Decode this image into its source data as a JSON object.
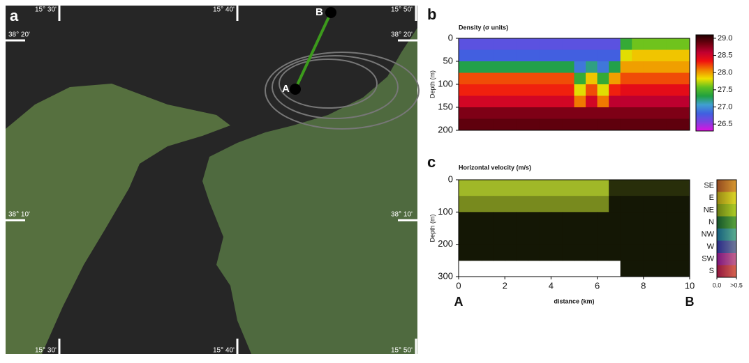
{
  "map": {
    "panel": "a",
    "lon_labels": [
      "15° 30'",
      "15° 40'",
      "15° 50'"
    ],
    "lat_labels": [
      "38° 20'",
      "38° 10'"
    ],
    "points": [
      "A",
      "B"
    ]
  },
  "chart_data": [
    {
      "type": "heatmap",
      "panel": "b",
      "title": "Density (σ units)",
      "y_label": "Depth (m)",
      "xlim": [
        0,
        10
      ],
      "ylim": [
        0,
        200
      ],
      "invert_y": true,
      "yticks": [
        0,
        50,
        100,
        150,
        200
      ],
      "x_edges": [
        0,
        0.5,
        1,
        1.5,
        2,
        2.5,
        3,
        3.5,
        4,
        4.5,
        5,
        5.5,
        6,
        6.5,
        7,
        7.5,
        8,
        8.5,
        9,
        9.5,
        10
      ],
      "y_edges": [
        0,
        25,
        50,
        75,
        100,
        125,
        150,
        175,
        200
      ],
      "values": [
        [
          26.7,
          26.7,
          26.7,
          26.7,
          26.7,
          26.7,
          26.7,
          26.7,
          26.7,
          26.7,
          26.7,
          26.7,
          26.7,
          26.7,
          27.4,
          27.6,
          27.6,
          27.6,
          27.6,
          27.6
        ],
        [
          26.8,
          26.8,
          26.8,
          26.8,
          26.8,
          26.8,
          26.8,
          26.8,
          26.8,
          26.8,
          26.8,
          26.8,
          26.8,
          26.8,
          27.8,
          27.9,
          27.9,
          27.9,
          27.9,
          27.9
        ],
        [
          27.3,
          27.3,
          27.3,
          27.3,
          27.3,
          27.3,
          27.3,
          27.3,
          27.3,
          27.3,
          26.9,
          27.2,
          26.9,
          27.3,
          28.0,
          28.0,
          28.0,
          28.0,
          28.0,
          28.0
        ],
        [
          28.2,
          28.2,
          28.2,
          28.2,
          28.2,
          28.2,
          28.2,
          28.2,
          28.2,
          28.2,
          27.4,
          27.9,
          27.4,
          28.0,
          28.2,
          28.2,
          28.2,
          28.2,
          28.2,
          28.2
        ],
        [
          28.3,
          28.3,
          28.3,
          28.3,
          28.3,
          28.3,
          28.3,
          28.3,
          28.3,
          28.3,
          27.8,
          28.2,
          27.8,
          28.3,
          28.4,
          28.4,
          28.4,
          28.4,
          28.4,
          28.4
        ],
        [
          28.5,
          28.5,
          28.5,
          28.5,
          28.5,
          28.5,
          28.5,
          28.5,
          28.5,
          28.5,
          28.1,
          28.5,
          28.1,
          28.6,
          28.6,
          28.6,
          28.6,
          28.6,
          28.6,
          28.6
        ],
        [
          28.8,
          28.8,
          28.8,
          28.8,
          28.8,
          28.8,
          28.8,
          28.8,
          28.8,
          28.8,
          28.8,
          28.8,
          28.8,
          28.8,
          28.8,
          28.8,
          28.8,
          28.8,
          28.8,
          28.8
        ],
        [
          28.9,
          28.9,
          28.9,
          28.9,
          28.9,
          28.9,
          28.9,
          28.9,
          28.9,
          28.9,
          28.9,
          28.9,
          28.9,
          28.9,
          28.9,
          28.9,
          28.9,
          28.9,
          28.9,
          28.9
        ]
      ],
      "zlim": [
        26.3,
        29.1
      ],
      "zticks": [
        26.5,
        {
          "value": 27,
          "label": "27.0"
        },
        27.5,
        {
          "value": 28,
          "label": "28.0"
        },
        28.5,
        {
          "value": 29,
          "label": "29.0"
        }
      ],
      "colorscale": [
        "#e010e0",
        "#8040e0",
        "#4060e0",
        "#40a0d0",
        "#20a040",
        "#60c020",
        "#f0e000",
        "#f08000",
        "#f01010",
        "#c00030",
        "#700010",
        "#200000"
      ]
    },
    {
      "type": "heatmap",
      "panel": "c",
      "title": "Horizontal velocity (m/s)",
      "y_label": "Depth (m)",
      "x_label": "distance (km)",
      "xlim": [
        0,
        10
      ],
      "ylim": [
        0,
        300
      ],
      "invert_y": true,
      "yticks": [
        0,
        100,
        200,
        300
      ],
      "xticks": [
        0,
        2,
        4,
        6,
        8,
        10
      ],
      "x_edges": [
        0,
        0.5,
        1,
        1.5,
        2,
        2.5,
        3,
        3.5,
        4,
        4.5,
        5,
        5.5,
        6,
        6.5,
        7,
        7.5,
        8,
        8.5,
        9,
        9.5,
        10
      ],
      "y_edges": [
        0,
        50,
        100,
        150,
        200,
        250,
        300
      ],
      "values": [
        [
          0.4,
          0.4,
          0.4,
          0.4,
          0.4,
          0.4,
          0.4,
          0.4,
          0.4,
          0.4,
          0.4,
          0.4,
          0.4,
          0.1,
          0.1,
          0.1,
          0.1,
          0.1,
          0.1,
          0.1
        ],
        [
          0.3,
          0.3,
          0.3,
          0.3,
          0.3,
          0.3,
          0.3,
          0.3,
          0.3,
          0.3,
          0.3,
          0.3,
          0.3,
          0.05,
          0.05,
          0.05,
          0.05,
          0.05,
          0.05,
          0.05
        ],
        [
          0.05,
          0.05,
          0.05,
          0.05,
          0.05,
          0.05,
          0.05,
          0.05,
          0.05,
          0.05,
          0.05,
          0.05,
          0.05,
          0.05,
          0.05,
          0.05,
          0.05,
          0.05,
          0.05,
          0.05
        ],
        [
          0.05,
          0.05,
          0.05,
          0.05,
          0.05,
          0.05,
          0.05,
          0.05,
          0.05,
          0.05,
          0.05,
          0.05,
          0.05,
          0.05,
          0.05,
          0.05,
          0.05,
          0.05,
          0.05,
          0.05
        ],
        [
          0.05,
          0.05,
          0.05,
          0.05,
          0.05,
          0.05,
          0.05,
          0.05,
          0.05,
          0.05,
          0.05,
          0.05,
          0.05,
          0.05,
          0.05,
          0.05,
          0.05,
          0.05,
          0.05,
          0.05
        ],
        [
          null,
          null,
          null,
          null,
          null,
          null,
          null,
          null,
          null,
          null,
          null,
          null,
          null,
          null,
          0.05,
          0.05,
          0.05,
          0.05,
          0.05,
          0.05
        ]
      ],
      "zlim": [
        0,
        0.5
      ],
      "colorscale": [
        "#000000",
        "#c8e632"
      ],
      "direction_labels": [
        "SE",
        "E",
        "NE",
        "N",
        "NW",
        "W",
        "SW",
        "S"
      ],
      "direction_colors": [
        "#e07030",
        "#e8d020",
        "#a0c020",
        "#208040",
        "#2090c0",
        "#4040d0",
        "#c020c0",
        "#e02060"
      ],
      "speed_labels": [
        {
          "value": 0,
          "label": "0.0"
        },
        {
          "value": 0.5,
          "label": ">0.5"
        }
      ],
      "end_labels": [
        "A",
        "B"
      ]
    }
  ]
}
